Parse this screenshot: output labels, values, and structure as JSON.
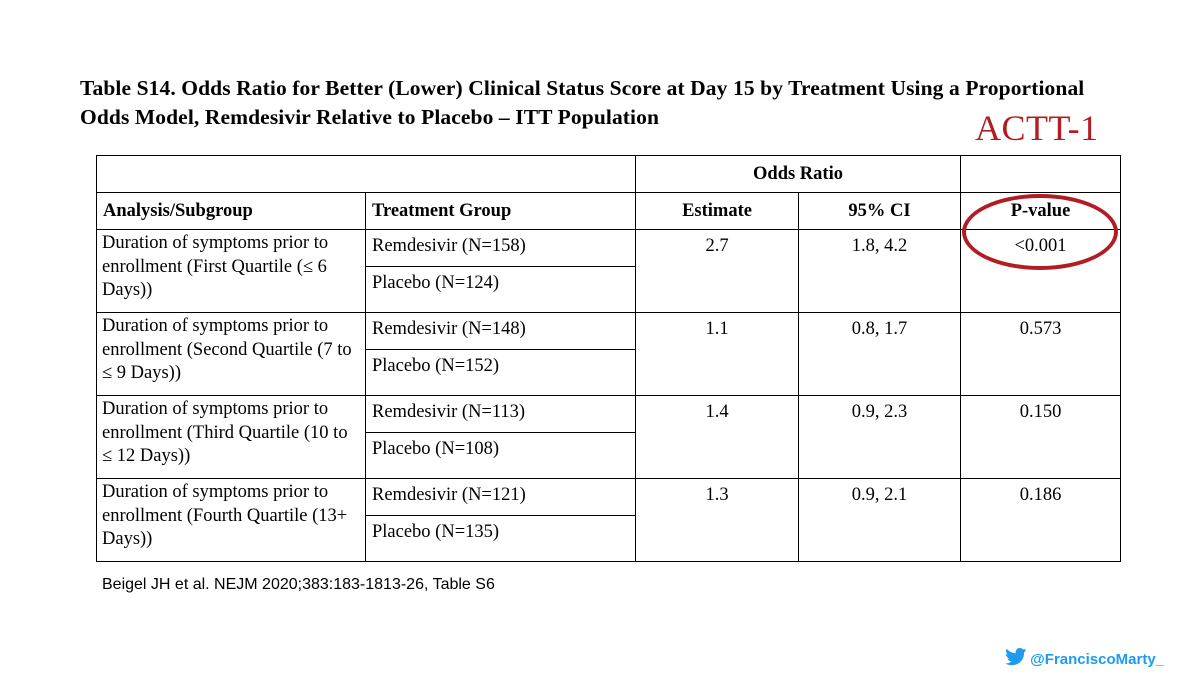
{
  "title": "Table S14. Odds Ratio for Better (Lower) Clinical Status Score at Day 15 by Treatment Using a Proportional Odds Model, Remdesivir Relative to Placebo – ITT Population",
  "study_tag": "ACTT-1",
  "colors": {
    "annotation": "#b01e23",
    "twitter": "#1d9bf0"
  },
  "table": {
    "group_header": "Odds Ratio",
    "headers": {
      "subgroup": "Analysis/Subgroup",
      "treatment": "Treatment Group",
      "estimate": "Estimate",
      "ci": "95% CI",
      "pvalue": "P-value"
    },
    "rows": [
      {
        "subgroup": "Duration of symptoms prior to enrollment (First Quartile (≤ 6 Days))",
        "treatment_a": "Remdesivir (N=158)",
        "treatment_b": "Placebo (N=124)",
        "estimate": "2.7",
        "ci": "1.8, 4.2",
        "pvalue": "<0.001"
      },
      {
        "subgroup": "Duration of symptoms prior to enrollment (Second Quartile (7 to ≤ 9 Days))",
        "treatment_a": "Remdesivir (N=148)",
        "treatment_b": "Placebo (N=152)",
        "estimate": "1.1",
        "ci": "0.8, 1.7",
        "pvalue": "0.573"
      },
      {
        "subgroup": "Duration of symptoms prior to enrollment (Third Quartile (10 to ≤ 12 Days))",
        "treatment_a": "Remdesivir (N=113)",
        "treatment_b": "Placebo (N=108)",
        "estimate": "1.4",
        "ci": "0.9, 2.3",
        "pvalue": "0.150"
      },
      {
        "subgroup": "Duration of symptoms prior to enrollment (Fourth Quartile (13+ Days))",
        "treatment_a": "Remdesivir (N=121)",
        "treatment_b": "Placebo (N=135)",
        "estimate": "1.3",
        "ci": "0.9, 2.1",
        "pvalue": "0.186"
      }
    ]
  },
  "citation": "Beigel JH et al. NEJM 2020;383:183-1813-26, Table S6",
  "footer": {
    "handle": "@FranciscoMarty_",
    "icon": "twitter-bird-icon"
  }
}
